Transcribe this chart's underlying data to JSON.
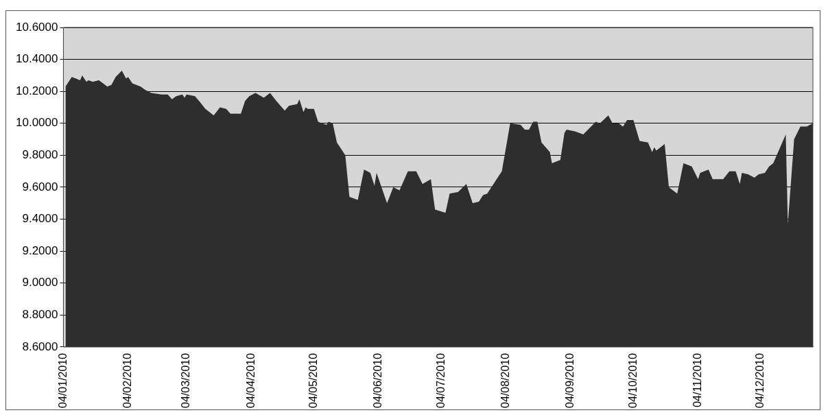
{
  "chart_data": {
    "type": "area",
    "x": [
      "2010-01-05",
      "2010-01-08",
      "2010-01-10",
      "2010-01-12",
      "2010-01-13",
      "2010-01-15",
      "2010-01-16",
      "2010-01-18",
      "2010-01-21",
      "2010-01-23",
      "2010-01-25",
      "2010-01-27",
      "2010-01-29",
      "2010-02-01",
      "2010-02-03",
      "2010-02-04",
      "2010-02-06",
      "2010-02-10",
      "2010-02-12",
      "2010-02-15",
      "2010-02-20",
      "2010-02-23",
      "2010-02-25",
      "2010-02-27",
      "2010-03-02",
      "2010-03-03",
      "2010-03-04",
      "2010-03-08",
      "2010-03-10",
      "2010-03-13",
      "2010-03-15",
      "2010-03-17",
      "2010-03-20",
      "2010-03-23",
      "2010-03-25",
      "2010-03-30",
      "2010-04-01",
      "2010-04-03",
      "2010-04-06",
      "2010-04-10",
      "2010-04-13",
      "2010-04-16",
      "2010-04-20",
      "2010-04-22",
      "2010-04-26",
      "2010-04-27",
      "2010-04-29",
      "2010-04-30",
      "2010-05-01",
      "2010-05-03",
      "2010-05-04",
      "2010-05-06",
      "2010-05-10",
      "2010-05-11",
      "2010-05-13",
      "2010-05-15",
      "2010-05-19",
      "2010-05-21",
      "2010-05-25",
      "2010-05-28",
      "2010-05-31",
      "2010-06-02",
      "2010-06-03",
      "2010-06-08",
      "2010-06-11",
      "2010-06-14",
      "2010-06-18",
      "2010-06-22",
      "2010-06-25",
      "2010-06-29",
      "2010-07-01",
      "2010-07-06",
      "2010-07-08",
      "2010-07-12",
      "2010-07-16",
      "2010-07-19",
      "2010-07-22",
      "2010-07-24",
      "2010-07-26",
      "2010-07-31",
      "2010-08-02",
      "2010-08-06",
      "2010-08-11",
      "2010-08-13",
      "2010-08-15",
      "2010-08-17",
      "2010-08-19",
      "2010-08-21",
      "2010-08-25",
      "2010-08-26",
      "2010-08-30",
      "2010-09-01",
      "2010-09-02",
      "2010-09-06",
      "2010-09-08",
      "2010-09-10",
      "2010-09-16",
      "2010-09-18",
      "2010-09-22",
      "2010-09-24",
      "2010-09-27",
      "2010-09-29",
      "2010-10-01",
      "2010-10-04",
      "2010-10-07",
      "2010-10-11",
      "2010-10-13",
      "2010-10-14",
      "2010-10-15",
      "2010-10-19",
      "2010-10-21",
      "2010-10-25",
      "2010-10-28",
      "2010-11-01",
      "2010-11-04",
      "2010-11-05",
      "2010-11-09",
      "2010-11-11",
      "2010-11-16",
      "2010-11-19",
      "2010-11-22",
      "2010-11-24",
      "2010-11-25",
      "2010-11-28",
      "2010-12-01",
      "2010-12-03",
      "2010-12-06",
      "2010-12-08",
      "2010-12-10",
      "2010-12-14",
      "2010-12-16",
      "2010-12-17",
      "2010-12-20",
      "2010-12-23",
      "2010-12-26",
      "2010-12-29"
    ],
    "series": [
      {
        "color": "#2e2e2e",
        "values": [
          10.23,
          10.29,
          10.28,
          10.27,
          10.3,
          10.26,
          10.27,
          10.26,
          10.27,
          10.25,
          10.23,
          10.24,
          10.29,
          10.33,
          10.28,
          10.29,
          10.25,
          10.23,
          10.21,
          10.19,
          10.18,
          10.18,
          10.15,
          10.17,
          10.18,
          10.16,
          10.18,
          10.17,
          10.14,
          10.09,
          10.07,
          10.05,
          10.1,
          10.09,
          10.06,
          10.06,
          10.14,
          10.17,
          10.19,
          10.16,
          10.19,
          10.14,
          10.08,
          10.11,
          10.12,
          10.15,
          10.07,
          10.1,
          10.09,
          10.09,
          10.09,
          10.01,
          9.99,
          10.01,
          10.0,
          9.88,
          9.8,
          9.54,
          9.52,
          9.71,
          9.69,
          9.61,
          9.69,
          9.5,
          9.6,
          9.58,
          9.7,
          9.7,
          9.62,
          9.65,
          9.46,
          9.44,
          9.56,
          9.57,
          9.62,
          9.5,
          9.51,
          9.55,
          9.56,
          9.66,
          9.7,
          10.0,
          9.99,
          9.96,
          9.96,
          10.01,
          10.01,
          9.88,
          9.82,
          9.75,
          9.77,
          9.94,
          9.96,
          9.95,
          9.94,
          9.93,
          10.01,
          10.0,
          10.05,
          10.0,
          10.0,
          9.98,
          10.02,
          10.02,
          9.89,
          9.88,
          9.82,
          9.85,
          9.83,
          9.87,
          9.6,
          9.56,
          9.75,
          9.73,
          9.65,
          9.69,
          9.71,
          9.65,
          9.65,
          9.7,
          9.7,
          9.62,
          9.69,
          9.68,
          9.66,
          9.68,
          9.69,
          9.73,
          9.75,
          9.87,
          9.93,
          9.37,
          9.9,
          9.98,
          9.98,
          10.0
        ]
      }
    ],
    "xlim": [
      "2010-01-04",
      "2010-12-29"
    ],
    "xticks": [
      {
        "value": "2010-01-04",
        "label": "04/01/2010"
      },
      {
        "value": "2010-02-04",
        "label": "04/02/2010"
      },
      {
        "value": "2010-03-04",
        "label": "04/03/2010"
      },
      {
        "value": "2010-04-04",
        "label": "04/04/2010"
      },
      {
        "value": "2010-05-04",
        "label": "04/05/2010"
      },
      {
        "value": "2010-06-04",
        "label": "04/06/2010"
      },
      {
        "value": "2010-07-04",
        "label": "04/07/2010"
      },
      {
        "value": "2010-08-04",
        "label": "04/08/2010"
      },
      {
        "value": "2010-09-04",
        "label": "04/09/2010"
      },
      {
        "value": "2010-10-04",
        "label": "04/10/2010"
      },
      {
        "value": "2010-11-04",
        "label": "04/11/2010"
      },
      {
        "value": "2010-12-04",
        "label": "04/12/2010"
      }
    ],
    "ylim": [
      8.6,
      10.6
    ],
    "yticks": [
      {
        "value": 8.6,
        "label": "8.6000"
      },
      {
        "value": 8.8,
        "label": "8.8000"
      },
      {
        "value": 9.0,
        "label": "9.0000"
      },
      {
        "value": 9.2,
        "label": "9.2000"
      },
      {
        "value": 9.4,
        "label": "9.4000"
      },
      {
        "value": 9.6,
        "label": "9.6000"
      },
      {
        "value": 9.8,
        "label": "9.8000"
      },
      {
        "value": 10.0,
        "label": "10.0000"
      },
      {
        "value": 10.2,
        "label": "10.2000"
      },
      {
        "value": 10.4,
        "label": "10.4000"
      },
      {
        "value": 10.6,
        "label": "10.6000"
      }
    ],
    "grid": "y",
    "legend": false
  }
}
